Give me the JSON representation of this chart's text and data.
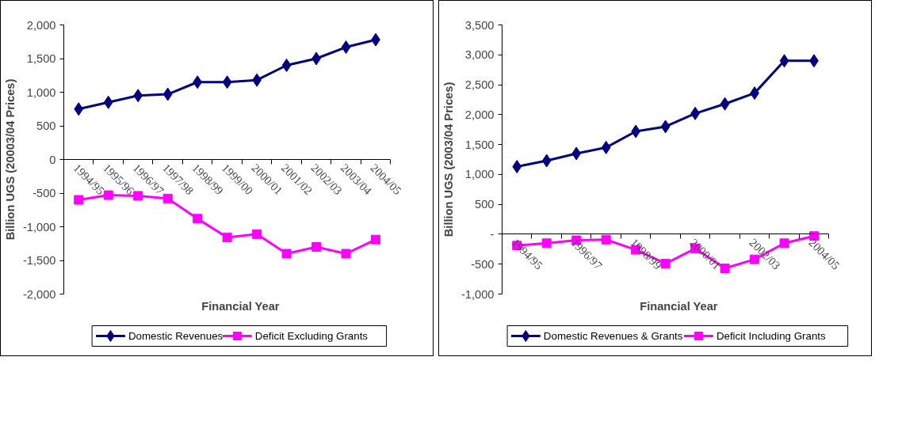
{
  "chart_data": [
    {
      "type": "line",
      "xlabel": "Financial Year",
      "ylabel": "Billion UGS (20003/04 Prices)",
      "categories": [
        "1994/95",
        "1995/96",
        "1996/97",
        "1997/98",
        "1998/99",
        "1999/00",
        "2000/01",
        "2001/02",
        "2002/03",
        "2003/04",
        "2004/05"
      ],
      "series": [
        {
          "name": "Domestic Revenues",
          "color": "#000080",
          "marker": "diamond",
          "values": [
            750,
            850,
            950,
            970,
            1150,
            1150,
            1180,
            1400,
            1500,
            1670,
            1780
          ]
        },
        {
          "name": "Deficit Excluding Grants",
          "color": "#ff00ff",
          "marker": "square",
          "values": [
            -600,
            -530,
            -540,
            -580,
            -880,
            -1160,
            -1110,
            -1400,
            -1300,
            -1400,
            -1190
          ]
        }
      ],
      "ylim": [
        -2000,
        2000
      ],
      "yticks": [
        {
          "value": -2000,
          "label": "-2,000"
        },
        {
          "value": -1500,
          "label": "-1,500"
        },
        {
          "value": -1000,
          "label": "-1,000"
        },
        -500,
        0,
        500,
        {
          "value": 1000,
          "label": "1,000"
        },
        {
          "value": 1500,
          "label": "1,500"
        },
        {
          "value": 2000,
          "label": "2,000"
        }
      ],
      "legend": "bottom",
      "grid": false
    },
    {
      "type": "line",
      "xlabel": "Financial Year",
      "ylabel": "Billion UGS (2003/04 Prices)",
      "categories": [
        "1994/95",
        null,
        "1996/97",
        null,
        "1998/99",
        null,
        "2000/01",
        null,
        "2002/03",
        null,
        "2004/05"
      ],
      "series": [
        {
          "name": "Domestic Revenues & Grants",
          "color": "#000080",
          "marker": "diamond",
          "values": [
            1130,
            1230,
            1350,
            1450,
            1720,
            1800,
            2020,
            2180,
            2360,
            2900,
            2900
          ]
        },
        {
          "name": "Deficit Including Grants",
          "color": "#ff00ff",
          "marker": "square",
          "values": [
            -190,
            -150,
            -100,
            -90,
            -260,
            -490,
            -240,
            -570,
            -420,
            -150,
            -30
          ]
        }
      ],
      "ylim": [
        -1000,
        3500
      ],
      "yticks": [
        {
          "value": -1000,
          "label": "-1,000"
        },
        -500,
        {
          "value": 0,
          "label": "-"
        },
        500,
        {
          "value": 1000,
          "label": "1,000"
        },
        {
          "value": 1500,
          "label": "1,500"
        },
        {
          "value": 2000,
          "label": "2,000"
        },
        {
          "value": 2500,
          "label": "2,500"
        },
        {
          "value": 3000,
          "label": "3,000"
        },
        {
          "value": 3500,
          "label": "3,500"
        }
      ],
      "legend": "bottom",
      "grid": false
    }
  ]
}
